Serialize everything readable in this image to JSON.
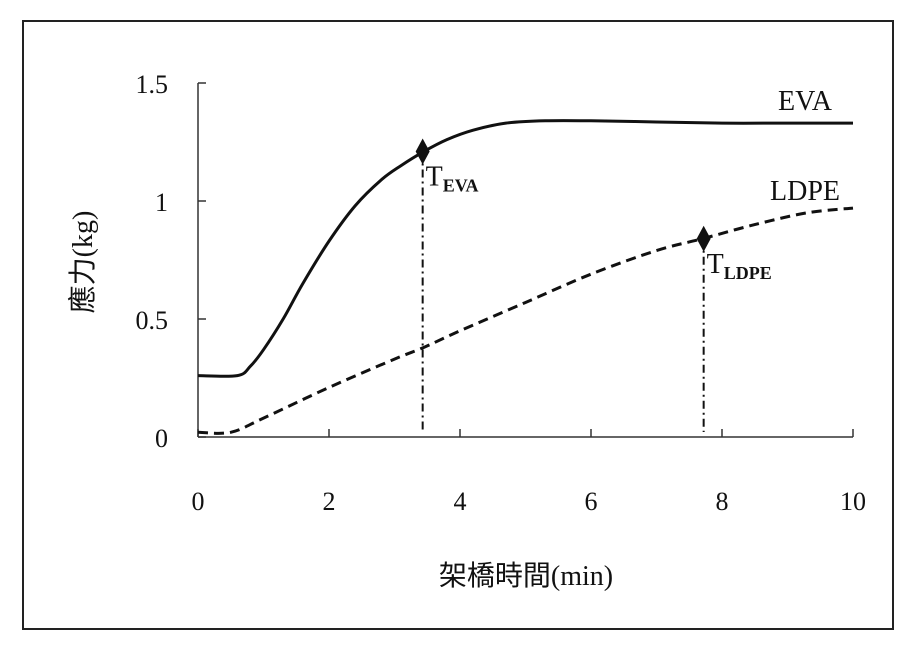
{
  "chart_data": {
    "type": "line",
    "title": "",
    "xlabel": "架橋時間(min)",
    "ylabel": "應力(kg)",
    "xlim": [
      0,
      10
    ],
    "ylim": [
      0,
      1.5
    ],
    "xticks": [
      "0",
      "2",
      "4",
      "6",
      "8",
      "10"
    ],
    "yticks": [
      "0",
      "0.5",
      "1",
      "1.5"
    ],
    "grid": false,
    "series": [
      {
        "name": "EVA",
        "style": "solid",
        "x": [
          0,
          0.6,
          0.8,
          1.0,
          1.3,
          1.6,
          2.0,
          2.4,
          2.8,
          3.1,
          3.45,
          3.8,
          4.2,
          4.7,
          5.3,
          6.0,
          7.0,
          8.0,
          9.0,
          10.0
        ],
        "y": [
          0.26,
          0.26,
          0.3,
          0.37,
          0.5,
          0.65,
          0.83,
          0.98,
          1.09,
          1.15,
          1.21,
          1.26,
          1.3,
          1.33,
          1.34,
          1.34,
          1.335,
          1.33,
          1.33,
          1.33
        ]
      },
      {
        "name": "LDPE",
        "style": "dashed",
        "x": [
          0,
          0.5,
          1.0,
          2.0,
          3.0,
          3.45,
          4.0,
          5.0,
          6.0,
          7.0,
          7.7,
          8.5,
          9.3,
          10.0
        ],
        "y": [
          0.02,
          0.02,
          0.08,
          0.21,
          0.33,
          0.38,
          0.45,
          0.57,
          0.69,
          0.79,
          0.84,
          0.9,
          0.95,
          0.97
        ]
      }
    ],
    "annotations": [
      {
        "label_main": "T",
        "label_sub": "EVA",
        "x": 3.43,
        "y": 1.21,
        "marker": "diamond",
        "dropline": true
      },
      {
        "label_main": "T",
        "label_sub": "LDPE",
        "x": 7.72,
        "y": 0.84,
        "marker": "diamond",
        "dropline": true
      }
    ],
    "legend": "inline-labels-right"
  }
}
